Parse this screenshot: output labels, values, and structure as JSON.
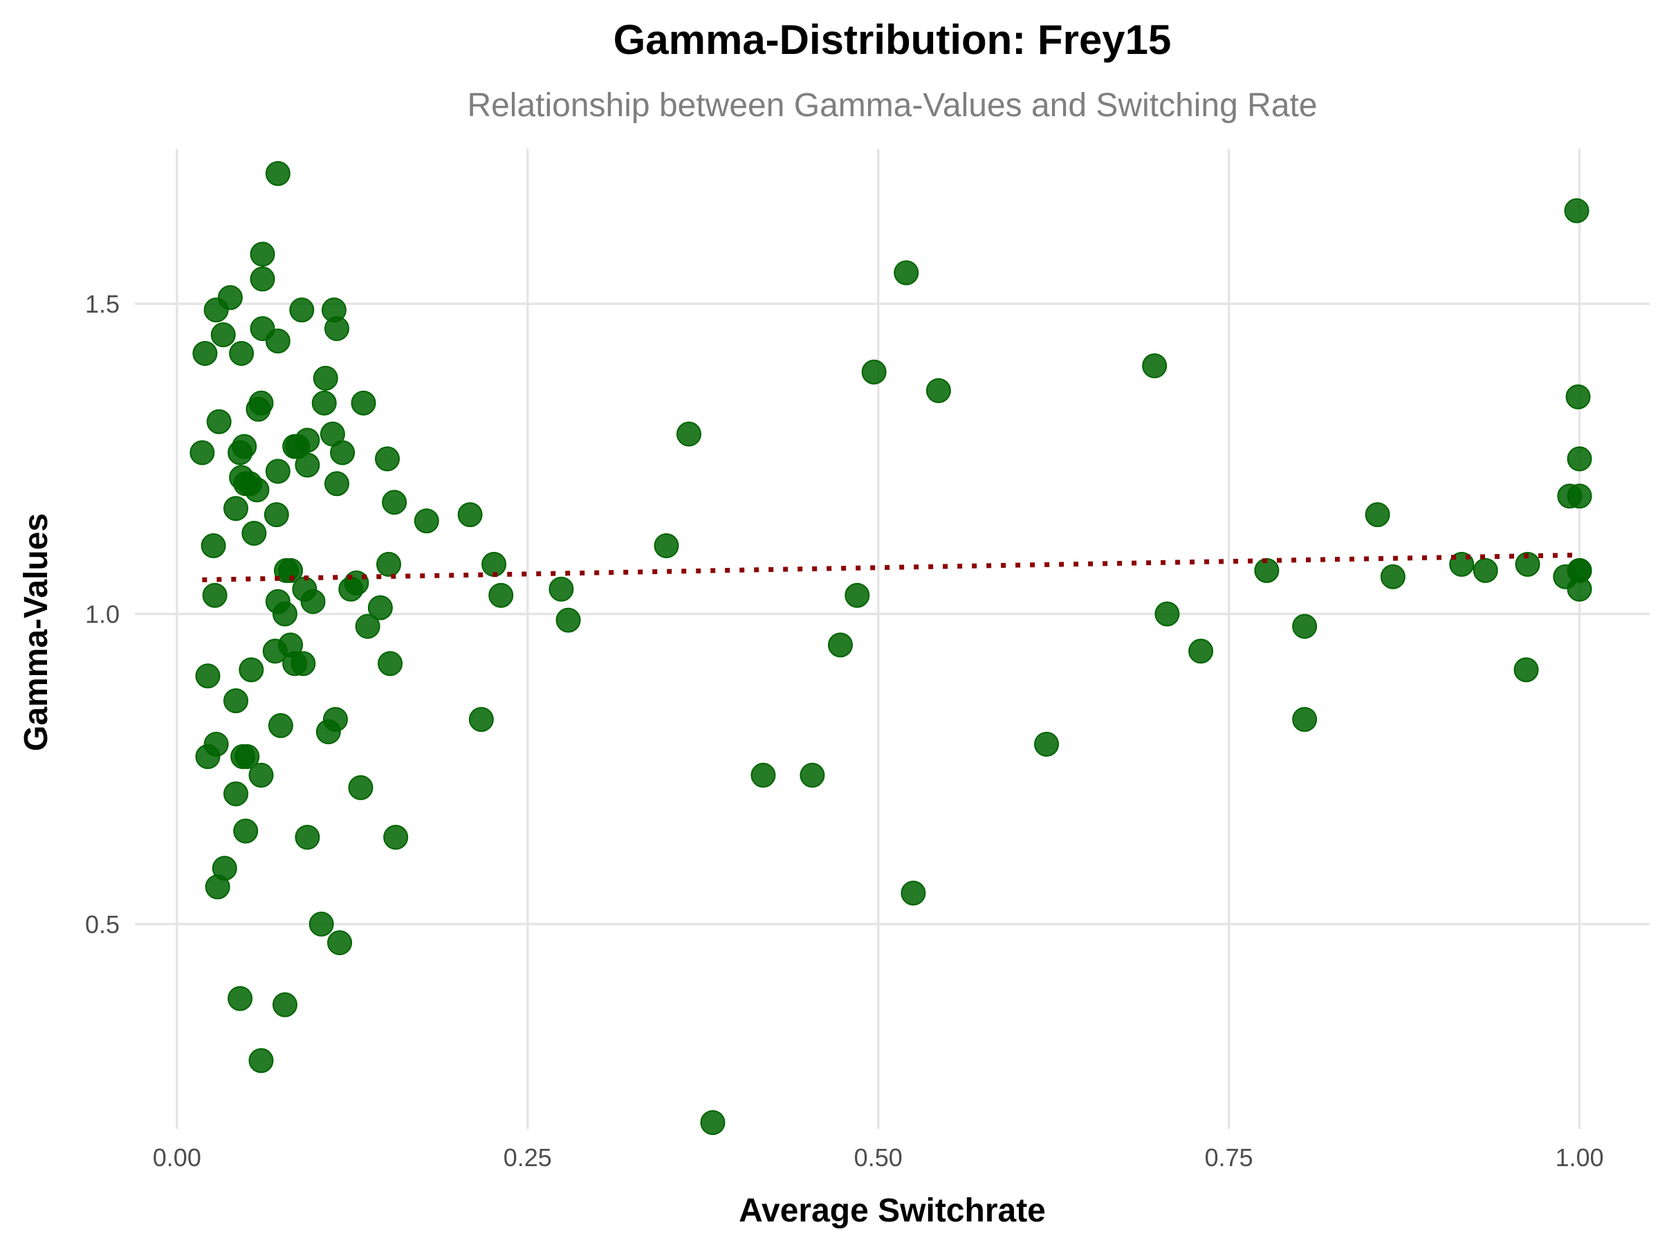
{
  "chart_data": {
    "type": "scatter",
    "title": "Gamma-Distribution: Frey15",
    "subtitle": "Relationship between Gamma-Values and Switching Rate",
    "xlabel": "Average Switchrate",
    "ylabel": "Gamma-Values",
    "xlim": [
      -0.03,
      1.05
    ],
    "ylim": [
      0.17,
      1.75
    ],
    "x_ticks": [
      0.0,
      0.25,
      0.5,
      0.75,
      1.0
    ],
    "x_tick_labels": [
      "0.00",
      "0.25",
      "0.50",
      "0.75",
      "1.00"
    ],
    "y_ticks": [
      0.5,
      1.0,
      1.5
    ],
    "y_tick_labels": [
      "0.5",
      "1.0",
      "1.5"
    ],
    "grid": true,
    "legend": "none",
    "colors": {
      "points": "#006400",
      "trend": "#8b0000",
      "grid": "#e5e5e5"
    },
    "trend_line": {
      "style": "dotted",
      "x": [
        0.018,
        1.0
      ],
      "y": [
        1.055,
        1.095
      ]
    },
    "points": [
      [
        0.072,
        1.71
      ],
      [
        0.061,
        1.58
      ],
      [
        0.061,
        1.54
      ],
      [
        0.038,
        1.51
      ],
      [
        0.028,
        1.49
      ],
      [
        0.089,
        1.49
      ],
      [
        0.112,
        1.49
      ],
      [
        0.033,
        1.45
      ],
      [
        0.061,
        1.46
      ],
      [
        0.114,
        1.46
      ],
      [
        0.072,
        1.44
      ],
      [
        0.02,
        1.42
      ],
      [
        0.046,
        1.42
      ],
      [
        0.106,
        1.38
      ],
      [
        0.105,
        1.34
      ],
      [
        0.06,
        1.34
      ],
      [
        0.133,
        1.34
      ],
      [
        0.058,
        1.33
      ],
      [
        0.03,
        1.31
      ],
      [
        0.111,
        1.29
      ],
      [
        0.093,
        1.28
      ],
      [
        0.048,
        1.27
      ],
      [
        0.084,
        1.27
      ],
      [
        0.086,
        1.27
      ],
      [
        0.018,
        1.26
      ],
      [
        0.045,
        1.26
      ],
      [
        0.118,
        1.26
      ],
      [
        0.15,
        1.25
      ],
      [
        0.093,
        1.24
      ],
      [
        0.072,
        1.23
      ],
      [
        0.046,
        1.22
      ],
      [
        0.049,
        1.21
      ],
      [
        0.052,
        1.21
      ],
      [
        0.114,
        1.21
      ],
      [
        0.057,
        1.2
      ],
      [
        0.155,
        1.18
      ],
      [
        0.042,
        1.17
      ],
      [
        0.071,
        1.16
      ],
      [
        0.178,
        1.15
      ],
      [
        0.209,
        1.16
      ],
      [
        0.055,
        1.13
      ],
      [
        0.026,
        1.11
      ],
      [
        0.349,
        1.11
      ],
      [
        0.078,
        1.07
      ],
      [
        0.081,
        1.07
      ],
      [
        0.151,
        1.08
      ],
      [
        0.226,
        1.08
      ],
      [
        0.128,
        1.05
      ],
      [
        0.124,
        1.04
      ],
      [
        0.091,
        1.04
      ],
      [
        0.097,
        1.02
      ],
      [
        0.072,
        1.02
      ],
      [
        0.027,
        1.03
      ],
      [
        0.231,
        1.03
      ],
      [
        0.274,
        1.04
      ],
      [
        0.145,
        1.01
      ],
      [
        0.077,
        1.0
      ],
      [
        0.279,
        0.99
      ],
      [
        0.136,
        0.98
      ],
      [
        0.081,
        0.95
      ],
      [
        0.07,
        0.94
      ],
      [
        0.084,
        0.92
      ],
      [
        0.09,
        0.92
      ],
      [
        0.152,
        0.92
      ],
      [
        0.053,
        0.91
      ],
      [
        0.022,
        0.9
      ],
      [
        0.042,
        0.86
      ],
      [
        0.113,
        0.83
      ],
      [
        0.074,
        0.82
      ],
      [
        0.217,
        0.83
      ],
      [
        0.108,
        0.81
      ],
      [
        0.028,
        0.79
      ],
      [
        0.022,
        0.77
      ],
      [
        0.047,
        0.77
      ],
      [
        0.05,
        0.77
      ],
      [
        0.06,
        0.74
      ],
      [
        0.131,
        0.72
      ],
      [
        0.042,
        0.71
      ],
      [
        0.049,
        0.65
      ],
      [
        0.093,
        0.64
      ],
      [
        0.156,
        0.64
      ],
      [
        0.034,
        0.59
      ],
      [
        0.029,
        0.56
      ],
      [
        0.103,
        0.5
      ],
      [
        0.116,
        0.47
      ],
      [
        0.045,
        0.38
      ],
      [
        0.077,
        0.37
      ],
      [
        0.06,
        0.28
      ],
      [
        0.365,
        1.29
      ],
      [
        0.382,
        0.18
      ],
      [
        0.418,
        0.74
      ],
      [
        0.453,
        0.74
      ],
      [
        0.473,
        0.95
      ],
      [
        0.485,
        1.03
      ],
      [
        0.497,
        1.39
      ],
      [
        0.52,
        1.55
      ],
      [
        0.525,
        0.55
      ],
      [
        0.543,
        1.36
      ],
      [
        0.62,
        0.79
      ],
      [
        0.697,
        1.4
      ],
      [
        0.706,
        1.0
      ],
      [
        0.73,
        0.94
      ],
      [
        0.777,
        1.07
      ],
      [
        0.804,
        0.98
      ],
      [
        0.804,
        0.83
      ],
      [
        0.856,
        1.16
      ],
      [
        0.867,
        1.06
      ],
      [
        0.916,
        1.08
      ],
      [
        0.933,
        1.07
      ],
      [
        0.962,
        0.91
      ],
      [
        0.963,
        1.08
      ],
      [
        0.99,
        1.06
      ],
      [
        0.993,
        1.19
      ],
      [
        0.998,
        1.65
      ],
      [
        0.999,
        1.35
      ],
      [
        1.0,
        1.25
      ],
      [
        1.0,
        1.19
      ],
      [
        1.0,
        1.07
      ],
      [
        1.0,
        1.07
      ],
      [
        1.0,
        1.04
      ]
    ]
  }
}
